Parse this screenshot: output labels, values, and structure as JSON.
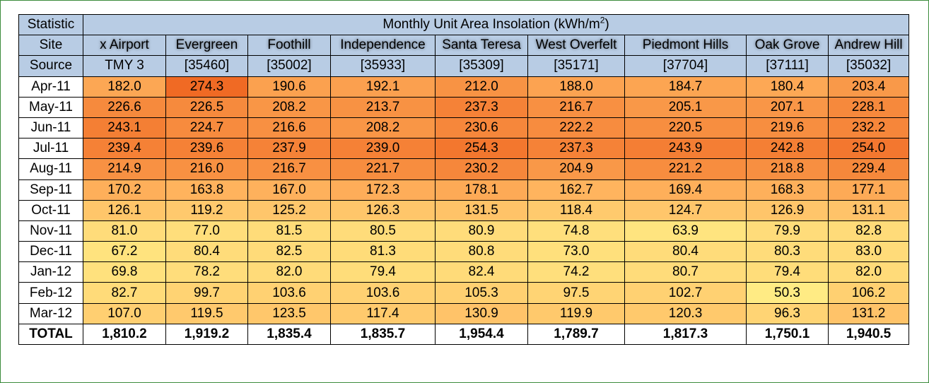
{
  "chart_data": {
    "type": "table",
    "header": {
      "statistic_label": "Statistic",
      "title_prefix": "Monthly Unit Area Insolation (kWh/m",
      "title_sup": "2",
      "title_suffix": ")",
      "site_label": "Site",
      "source_label": "Source",
      "total_label": "TOTAL"
    },
    "sources": [
      "TMY 3",
      "[35460]",
      "[35002]",
      "[35933]",
      "[35309]",
      "[35171]",
      "[37704]",
      "[37111]",
      "[35032]"
    ],
    "rows": [
      {
        "month": "Apr-11",
        "values": [
          "182.0",
          "274.3",
          "190.6",
          "192.1",
          "212.0",
          "188.0",
          "184.7",
          "180.4",
          "203.4"
        ]
      },
      {
        "month": "May-11",
        "values": [
          "226.6",
          "226.5",
          "208.2",
          "213.7",
          "237.3",
          "216.7",
          "205.1",
          "207.1",
          "228.1"
        ]
      },
      {
        "month": "Jun-11",
        "values": [
          "243.1",
          "224.7",
          "216.6",
          "208.2",
          "230.6",
          "222.2",
          "220.5",
          "219.6",
          "232.2"
        ]
      },
      {
        "month": "Jul-11",
        "values": [
          "239.4",
          "239.6",
          "237.9",
          "239.0",
          "254.3",
          "237.3",
          "243.9",
          "242.8",
          "254.0"
        ]
      },
      {
        "month": "Aug-11",
        "values": [
          "214.9",
          "216.0",
          "216.7",
          "221.7",
          "230.2",
          "204.9",
          "221.2",
          "218.8",
          "229.4"
        ]
      },
      {
        "month": "Sep-11",
        "values": [
          "170.2",
          "163.8",
          "167.0",
          "172.3",
          "178.1",
          "162.7",
          "169.4",
          "168.3",
          "177.1"
        ]
      },
      {
        "month": "Oct-11",
        "values": [
          "126.1",
          "119.2",
          "125.2",
          "126.3",
          "131.5",
          "118.4",
          "124.7",
          "126.9",
          "131.1"
        ]
      },
      {
        "month": "Nov-11",
        "values": [
          "81.0",
          "77.0",
          "81.5",
          "80.5",
          "80.9",
          "74.8",
          "63.9",
          "79.9",
          "82.8"
        ]
      },
      {
        "month": "Dec-11",
        "values": [
          "67.2",
          "80.4",
          "82.5",
          "81.3",
          "80.8",
          "73.0",
          "80.4",
          "80.3",
          "83.0"
        ]
      },
      {
        "month": "Jan-12",
        "values": [
          "69.8",
          "78.2",
          "82.0",
          "79.4",
          "82.4",
          "74.2",
          "80.7",
          "79.4",
          "82.0"
        ]
      },
      {
        "month": "Feb-12",
        "values": [
          "82.7",
          "99.7",
          "103.6",
          "103.6",
          "105.3",
          "97.5",
          "102.7",
          "50.3",
          "106.2"
        ]
      },
      {
        "month": "Mar-12",
        "values": [
          "107.0",
          "119.5",
          "123.5",
          "117.4",
          "130.9",
          "119.9",
          "120.3",
          "96.3",
          "131.2"
        ]
      }
    ],
    "totals": [
      "1,810.2",
      "1,919.2",
      "1,835.4",
      "1,835.7",
      "1,954.4",
      "1,789.7",
      "1,817.3",
      "1,750.1",
      "1,940.5"
    ],
    "color_scale": {
      "low": "#ffeb84",
      "mid": "#ffb45e",
      "high": "#f06a24"
    }
  },
  "site_names_blurred": [
    "x Airport",
    "Evergreen",
    "Foothill",
    "Independence",
    "Santa Teresa",
    "West Overfelt",
    "Piedmont Hills",
    "Oak Grove",
    "Andrew Hill"
  ]
}
